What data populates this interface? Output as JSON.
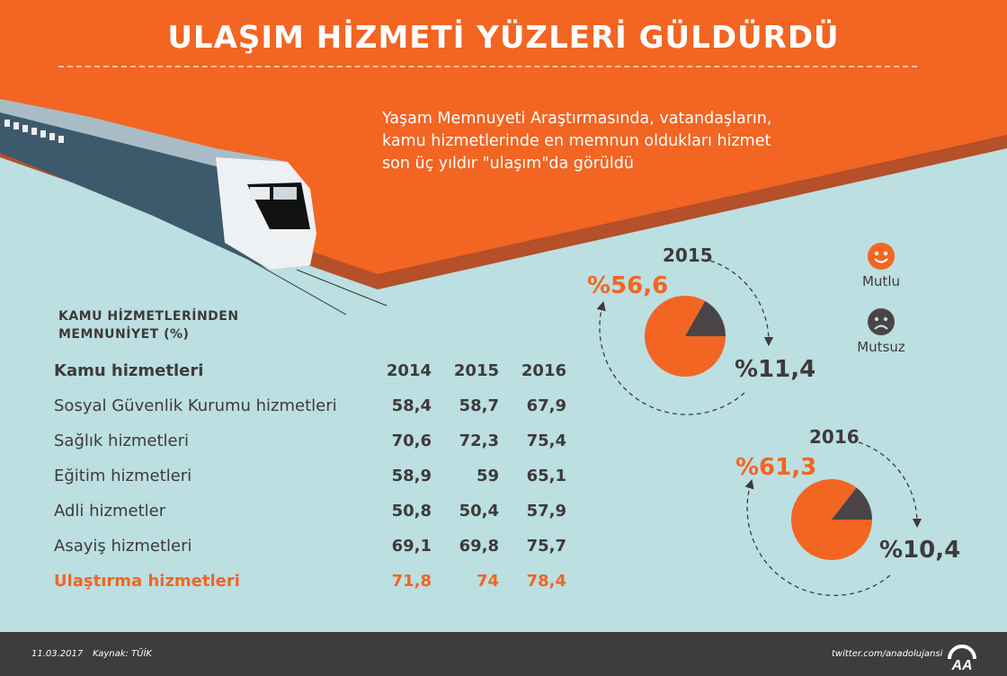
{
  "title": "ULAŞIM HİZMETİ YÜZLERİ GÜLDÜRDÜ",
  "intro": [
    "Yaşam Memnuyeti Araştırmasında, vatandaşların,",
    "kamu hizmetlerinde en memnun oldukları hizmet",
    "son üç yıldır \"ulaşım\"da görüldü"
  ],
  "section_title": [
    "KAMU HİZMETLERİNDEN",
    "MEMNUNİYET (%)"
  ],
  "table": {
    "headers": [
      "Kamu hizmetleri",
      "2014",
      "2015",
      "2016"
    ],
    "rows": [
      [
        "Sosyal Güvenlik Kurumu hizmetleri",
        "58,4",
        "58,7",
        "67,9"
      ],
      [
        "Sağlık hizmetleri",
        "70,6",
        "72,3",
        "75,4"
      ],
      [
        "Eğitim hizmetleri",
        "58,9",
        "59",
        "65,1"
      ],
      [
        "Adli hizmetler",
        "50,8",
        "50,4",
        "57,9"
      ],
      [
        "Asayiş hizmetleri",
        "69,1",
        "69,8",
        "75,7"
      ],
      [
        "Ulaştırma hizmetleri",
        "71,8",
        "74",
        "78,4"
      ]
    ]
  },
  "chart_data": [
    {
      "type": "pie",
      "title": "2015",
      "labels": [
        "Mutlu",
        "Mutsuz"
      ],
      "values": [
        56.6,
        11.4
      ],
      "value_labels": [
        "%56,6",
        "%11,4"
      ],
      "colors": [
        "#f26522",
        "#4a4446"
      ]
    },
    {
      "type": "pie",
      "title": "2016",
      "labels": [
        "Mutlu",
        "Mutsuz"
      ],
      "values": [
        61.3,
        10.4
      ],
      "value_labels": [
        "%61,3",
        "%10,4"
      ],
      "colors": [
        "#f26522",
        "#4a4446"
      ]
    }
  ],
  "legend": {
    "happy": "Mutlu",
    "unhappy": "Mutsuz"
  },
  "footer": {
    "date": "11.03.2017",
    "source": "Kaynak: TÜİK",
    "twitter": "twitter.com/anadolujansi",
    "logo": "AA"
  },
  "colors": {
    "orange": "#f26522",
    "dark": "#3e3d3c",
    "bg": "#bcdfe1"
  }
}
